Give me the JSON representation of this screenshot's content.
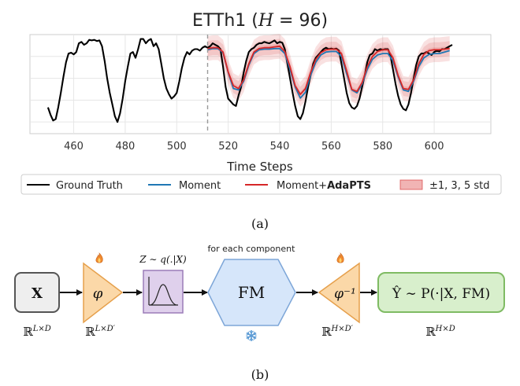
{
  "chart_data": {
    "type": "line",
    "title": "ETTh1 (H = 96)",
    "title_prefix": "ETTh1 (",
    "title_var": "H",
    "title_suffix": " = 96)",
    "xlabel": "Time Steps",
    "ylabel": "",
    "xlim": [
      443,
      622
    ],
    "ylim": [
      -1.9,
      1.5
    ],
    "x_ticks": [
      460,
      480,
      500,
      520,
      540,
      560,
      580,
      600
    ],
    "forecast_start": 512,
    "grid": true,
    "legend_position": "bottom",
    "series": [
      {
        "name": "Ground Truth",
        "color": "#000000",
        "points": [
          [
            450,
            -1.0
          ],
          [
            451,
            -1.25
          ],
          [
            452,
            -1.45
          ],
          [
            453,
            -1.4
          ],
          [
            454,
            -1.0
          ],
          [
            455,
            -0.5
          ],
          [
            456,
            0.05
          ],
          [
            457,
            0.55
          ],
          [
            458,
            0.85
          ],
          [
            459,
            0.88
          ],
          [
            460,
            0.82
          ],
          [
            461,
            0.9
          ],
          [
            462,
            1.2
          ],
          [
            463,
            1.25
          ],
          [
            464,
            1.15
          ],
          [
            465,
            1.2
          ],
          [
            466,
            1.32
          ],
          [
            467,
            1.3
          ],
          [
            468,
            1.32
          ],
          [
            469,
            1.28
          ],
          [
            470,
            1.3
          ],
          [
            471,
            1.1
          ],
          [
            472,
            0.6
          ],
          [
            473,
            0.0
          ],
          [
            474,
            -0.5
          ],
          [
            475,
            -0.9
          ],
          [
            476,
            -1.3
          ],
          [
            477,
            -1.5
          ],
          [
            478,
            -1.2
          ],
          [
            479,
            -0.7
          ],
          [
            480,
            -0.1
          ],
          [
            481,
            0.4
          ],
          [
            482,
            0.85
          ],
          [
            483,
            0.9
          ],
          [
            484,
            0.7
          ],
          [
            485,
            1.0
          ],
          [
            486,
            1.35
          ],
          [
            487,
            1.35
          ],
          [
            488,
            1.2
          ],
          [
            489,
            1.3
          ],
          [
            490,
            1.35
          ],
          [
            491,
            1.1
          ],
          [
            492,
            1.2
          ],
          [
            493,
            1.0
          ],
          [
            494,
            0.5
          ],
          [
            495,
            0.0
          ],
          [
            496,
            -0.35
          ],
          [
            497,
            -0.55
          ],
          [
            498,
            -0.7
          ],
          [
            499,
            -0.62
          ],
          [
            500,
            -0.5
          ],
          [
            501,
            -0.1
          ],
          [
            502,
            0.35
          ],
          [
            503,
            0.7
          ],
          [
            504,
            0.9
          ],
          [
            505,
            0.82
          ],
          [
            506,
            0.95
          ],
          [
            507,
            1.0
          ],
          [
            508,
            1.0
          ],
          [
            509,
            0.95
          ],
          [
            510,
            1.05
          ],
          [
            511,
            1.1
          ],
          [
            512,
            1.05
          ],
          [
            513,
            1.1
          ],
          [
            514,
            1.2
          ],
          [
            515,
            1.15
          ],
          [
            516,
            1.1
          ],
          [
            517,
            1.0
          ],
          [
            518,
            0.4
          ],
          [
            519,
            -0.3
          ],
          [
            520,
            -0.7
          ],
          [
            521,
            -0.8
          ],
          [
            522,
            -0.9
          ],
          [
            523,
            -0.95
          ],
          [
            524,
            -0.6
          ],
          [
            525,
            -0.3
          ],
          [
            526,
            0.2
          ],
          [
            527,
            0.6
          ],
          [
            528,
            0.9
          ],
          [
            529,
            1.0
          ],
          [
            530,
            1.05
          ],
          [
            531,
            1.15
          ],
          [
            532,
            1.2
          ],
          [
            533,
            1.2
          ],
          [
            534,
            1.25
          ],
          [
            535,
            1.22
          ],
          [
            536,
            1.2
          ],
          [
            537,
            1.25
          ],
          [
            538,
            1.3
          ],
          [
            539,
            1.2
          ],
          [
            540,
            1.25
          ],
          [
            541,
            1.22
          ],
          [
            542,
            1.0
          ],
          [
            543,
            0.5
          ],
          [
            544,
            0.0
          ],
          [
            545,
            -0.5
          ],
          [
            546,
            -0.95
          ],
          [
            547,
            -1.3
          ],
          [
            548,
            -1.4
          ],
          [
            549,
            -1.2
          ],
          [
            550,
            -0.8
          ],
          [
            551,
            -0.3
          ],
          [
            552,
            0.1
          ],
          [
            553,
            0.5
          ],
          [
            554,
            0.7
          ],
          [
            555,
            0.8
          ],
          [
            556,
            0.9
          ],
          [
            557,
            1.0
          ],
          [
            558,
            1.05
          ],
          [
            559,
            1.0
          ],
          [
            560,
            1.02
          ],
          [
            561,
            1.0
          ],
          [
            562,
            1.02
          ],
          [
            563,
            0.95
          ],
          [
            564,
            0.5
          ],
          [
            565,
            0.0
          ],
          [
            566,
            -0.5
          ],
          [
            567,
            -0.85
          ],
          [
            568,
            -1.0
          ],
          [
            569,
            -1.05
          ],
          [
            570,
            -0.95
          ],
          [
            571,
            -0.7
          ],
          [
            572,
            -0.3
          ],
          [
            573,
            0.1
          ],
          [
            574,
            0.55
          ],
          [
            575,
            0.8
          ],
          [
            576,
            0.85
          ],
          [
            577,
            1.0
          ],
          [
            578,
            0.95
          ],
          [
            579,
            1.0
          ],
          [
            580,
            0.98
          ],
          [
            581,
            1.0
          ],
          [
            582,
            1.0
          ],
          [
            583,
            0.8
          ],
          [
            584,
            0.3
          ],
          [
            585,
            -0.2
          ],
          [
            586,
            -0.6
          ],
          [
            587,
            -0.9
          ],
          [
            588,
            -1.05
          ],
          [
            589,
            -1.1
          ],
          [
            590,
            -0.9
          ],
          [
            591,
            -0.5
          ],
          [
            592,
            0.0
          ],
          [
            593,
            0.45
          ],
          [
            594,
            0.75
          ],
          [
            595,
            0.85
          ],
          [
            596,
            0.85
          ],
          [
            597,
            0.9
          ],
          [
            598,
            0.85
          ],
          [
            599,
            0.8
          ],
          [
            600,
            0.9
          ],
          [
            601,
            0.95
          ],
          [
            602,
            0.92
          ],
          [
            603,
            1.0
          ],
          [
            604,
            1.0
          ],
          [
            605,
            1.05
          ],
          [
            606,
            1.1
          ],
          [
            607,
            1.15
          ]
        ]
      },
      {
        "name": "Moment",
        "color": "#1f77b4",
        "points": [
          [
            512,
            0.98
          ],
          [
            514,
            1.02
          ],
          [
            516,
            1.02
          ],
          [
            518,
            0.88
          ],
          [
            520,
            0.2
          ],
          [
            522,
            -0.35
          ],
          [
            524,
            -0.4
          ],
          [
            526,
            -0.1
          ],
          [
            528,
            0.45
          ],
          [
            530,
            0.85
          ],
          [
            532,
            0.98
          ],
          [
            534,
            1.0
          ],
          [
            536,
            1.0
          ],
          [
            538,
            1.02
          ],
          [
            540,
            1.02
          ],
          [
            542,
            0.85
          ],
          [
            544,
            0.3
          ],
          [
            546,
            -0.3
          ],
          [
            548,
            -0.68
          ],
          [
            550,
            -0.48
          ],
          [
            552,
            0.1
          ],
          [
            554,
            0.55
          ],
          [
            556,
            0.8
          ],
          [
            558,
            0.9
          ],
          [
            560,
            0.92
          ],
          [
            562,
            0.92
          ],
          [
            564,
            0.75
          ],
          [
            566,
            0.15
          ],
          [
            568,
            -0.4
          ],
          [
            570,
            -0.5
          ],
          [
            572,
            -0.2
          ],
          [
            574,
            0.3
          ],
          [
            576,
            0.65
          ],
          [
            578,
            0.8
          ],
          [
            580,
            0.85
          ],
          [
            582,
            0.85
          ],
          [
            584,
            0.6
          ],
          [
            586,
            0.05
          ],
          [
            588,
            -0.4
          ],
          [
            590,
            -0.45
          ],
          [
            592,
            -0.1
          ],
          [
            594,
            0.4
          ],
          [
            596,
            0.7
          ],
          [
            598,
            0.82
          ],
          [
            600,
            0.85
          ],
          [
            602,
            0.85
          ],
          [
            604,
            0.9
          ],
          [
            606,
            0.95
          ]
        ]
      },
      {
        "name": "Moment+AdaPTS",
        "name_prefix": "Moment+",
        "name_suffix": "AdaPTS",
        "color": "#d62728",
        "points": [
          [
            512,
            1.02
          ],
          [
            514,
            1.05
          ],
          [
            516,
            1.05
          ],
          [
            518,
            0.9
          ],
          [
            520,
            0.22
          ],
          [
            522,
            -0.25
          ],
          [
            524,
            -0.35
          ],
          [
            526,
            -0.05
          ],
          [
            528,
            0.5
          ],
          [
            530,
            0.9
          ],
          [
            532,
            1.02
          ],
          [
            534,
            1.05
          ],
          [
            536,
            1.05
          ],
          [
            538,
            1.08
          ],
          [
            540,
            1.1
          ],
          [
            542,
            0.92
          ],
          [
            544,
            0.4
          ],
          [
            546,
            -0.25
          ],
          [
            548,
            -0.55
          ],
          [
            550,
            -0.35
          ],
          [
            552,
            0.2
          ],
          [
            554,
            0.65
          ],
          [
            556,
            0.88
          ],
          [
            558,
            0.98
          ],
          [
            560,
            1.0
          ],
          [
            562,
            1.0
          ],
          [
            564,
            0.85
          ],
          [
            566,
            0.25
          ],
          [
            568,
            -0.38
          ],
          [
            570,
            -0.45
          ],
          [
            572,
            -0.15
          ],
          [
            574,
            0.4
          ],
          [
            576,
            0.75
          ],
          [
            578,
            0.92
          ],
          [
            580,
            0.98
          ],
          [
            582,
            0.98
          ],
          [
            584,
            0.7
          ],
          [
            586,
            0.1
          ],
          [
            588,
            -0.35
          ],
          [
            590,
            -0.38
          ],
          [
            592,
            -0.05
          ],
          [
            594,
            0.5
          ],
          [
            596,
            0.82
          ],
          [
            598,
            0.95
          ],
          [
            600,
            0.98
          ],
          [
            602,
            0.98
          ],
          [
            604,
            1.0
          ],
          [
            606,
            1.02
          ]
        ]
      }
    ],
    "uncertainty": {
      "label": "±1, 3, 5 std",
      "color": "#d62728",
      "std_levels": [
        1,
        3,
        5
      ],
      "std": 0.085
    }
  },
  "diagram": {
    "panel_a_label": "(a)",
    "panel_b_label": "(b)",
    "input_label": "X",
    "input_space": "ℝ",
    "input_space_sup": "L×D",
    "encoder_label": "φ",
    "encoder_space": "ℝ",
    "encoder_space_sup": "L×D′",
    "latent_dist_label": "Z ∼ q(.|X)",
    "fm_caption": "for each component",
    "fm_label": "FM",
    "decoder_label": "φ⁻¹",
    "decoder_space": "ℝ",
    "decoder_space_sup": "H×D′",
    "output_label": "Ŷ ∼ P(·|X, FM)",
    "output_space": "ℝ",
    "output_space_sup": "H×D",
    "trainable_icon": "flame-icon",
    "frozen_icon": "snowflake-icon",
    "colors": {
      "input_fill": "#eeeeee",
      "triangle_fill": "#fbd8a8",
      "triangle_stroke": "#e6a04c",
      "dist_fill": "#dfd0ec",
      "dist_stroke": "#9b7cb8",
      "fm_fill": "#d6e6fa",
      "fm_stroke": "#7da6d8",
      "output_fill": "#d8efcc",
      "output_stroke": "#7fbb63",
      "flame": "#f08a30",
      "snow": "#5b9bd5"
    }
  }
}
